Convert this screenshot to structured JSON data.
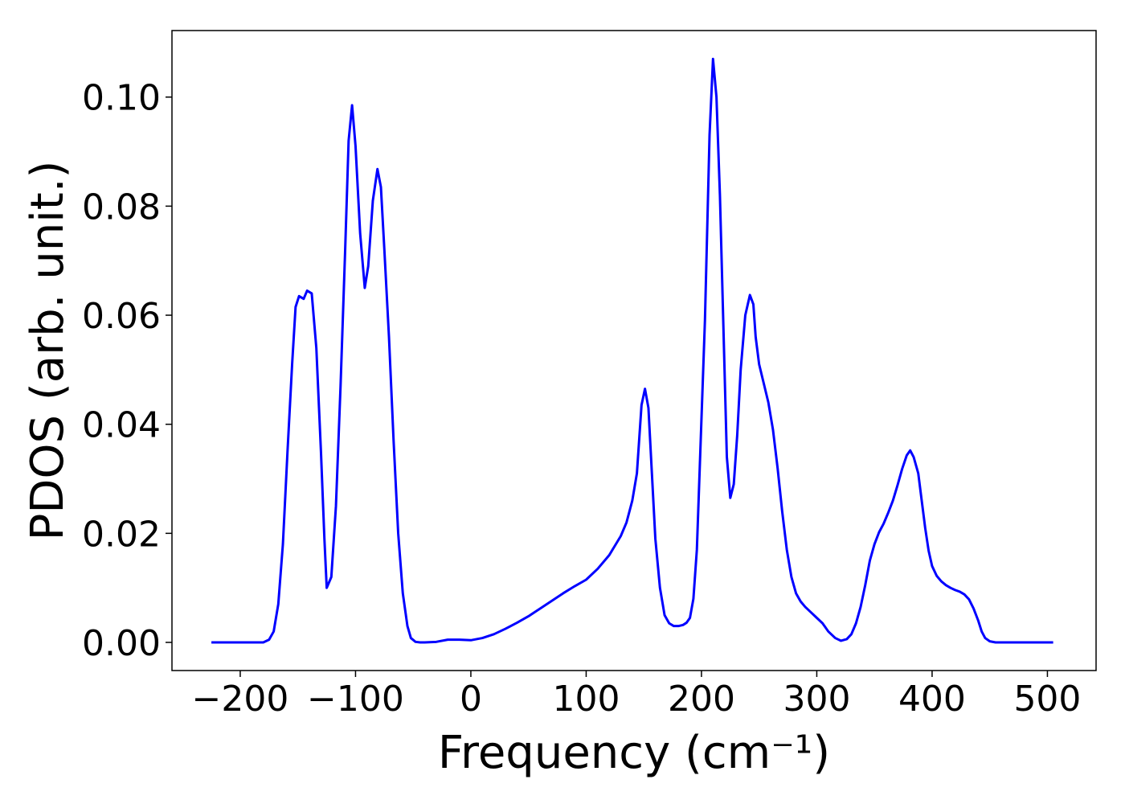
{
  "chart_data": {
    "type": "line",
    "xlabel": "Frequency (cm⁻¹)",
    "ylabel": "PDOS (arb. unit.)",
    "xlim": [
      -259.2,
      542.2
    ],
    "ylim": [
      -0.00516,
      0.1122
    ],
    "xticks": [
      {
        "value": -200,
        "label": "−200"
      },
      {
        "value": -100,
        "label": "−100"
      },
      0,
      100,
      200,
      300,
      400,
      500
    ],
    "yticks": [
      {
        "value": 0,
        "label": "0.00"
      },
      {
        "value": 0.02,
        "label": "0.02"
      },
      {
        "value": 0.04,
        "label": "0.04"
      },
      {
        "value": 0.06,
        "label": "0.06"
      },
      {
        "value": 0.08,
        "label": "0.08"
      },
      {
        "value": 0.1,
        "label": "0.10"
      }
    ],
    "grid": false,
    "x": [
      -225,
      -180,
      -175,
      -171,
      -167,
      -163,
      -159,
      -155,
      -152,
      -149,
      -145,
      -142,
      -138,
      -134,
      -130,
      -127,
      -125,
      -121,
      -117,
      -113,
      -109,
      -106,
      -103,
      -100,
      -96,
      -92,
      -89,
      -85,
      -81,
      -78,
      -75,
      -71,
      -67,
      -63,
      -59,
      -55,
      -52,
      -48,
      -44,
      -40,
      -30,
      -20,
      -10,
      0,
      10,
      20,
      30,
      40,
      50,
      60,
      70,
      80,
      90,
      100,
      110,
      120,
      130,
      135,
      140,
      144,
      148,
      151,
      154,
      157,
      160,
      164,
      168,
      172,
      176,
      180,
      184,
      187,
      190,
      193,
      196,
      199,
      203,
      207,
      210,
      213,
      216,
      219,
      222,
      225,
      228,
      231,
      234,
      238,
      242,
      245,
      247,
      250,
      254,
      258,
      262,
      266,
      270,
      274,
      278,
      282,
      286,
      290,
      295,
      300,
      305,
      310,
      316,
      321,
      326,
      330,
      334,
      338,
      342,
      346,
      350,
      354,
      358,
      362,
      366,
      370,
      374,
      378,
      381,
      384,
      388,
      391,
      394,
      397,
      400,
      404,
      408,
      412,
      416,
      420,
      424,
      428,
      432,
      436,
      440,
      443,
      446,
      450,
      455,
      505
    ],
    "series": [
      {
        "color": "#0000ff",
        "values": [
          0,
          0,
          0.0005,
          0.002,
          0.007,
          0.018,
          0.035,
          0.051,
          0.0615,
          0.0635,
          0.063,
          0.0645,
          0.064,
          0.054,
          0.035,
          0.019,
          0.01,
          0.012,
          0.025,
          0.047,
          0.072,
          0.092,
          0.0985,
          0.091,
          0.075,
          0.065,
          0.069,
          0.081,
          0.0868,
          0.0835,
          0.072,
          0.056,
          0.037,
          0.02,
          0.009,
          0.003,
          0.0008,
          0.0001,
          0,
          0,
          0.0001,
          0.0005,
          0.0005,
          0.0004,
          0.0008,
          0.0015,
          0.0025,
          0.0036,
          0.0048,
          0.0062,
          0.0076,
          0.009,
          0.0103,
          0.0115,
          0.0135,
          0.016,
          0.0195,
          0.022,
          0.026,
          0.031,
          0.0435,
          0.0465,
          0.043,
          0.031,
          0.019,
          0.01,
          0.005,
          0.0035,
          0.003,
          0.003,
          0.0032,
          0.0036,
          0.0045,
          0.008,
          0.017,
          0.035,
          0.059,
          0.093,
          0.107,
          0.1,
          0.082,
          0.058,
          0.034,
          0.0265,
          0.029,
          0.038,
          0.05,
          0.06,
          0.0637,
          0.062,
          0.056,
          0.051,
          0.0475,
          0.044,
          0.039,
          0.032,
          0.024,
          0.017,
          0.012,
          0.009,
          0.0075,
          0.0065,
          0.0055,
          0.0045,
          0.0035,
          0.002,
          0.0008,
          0.0003,
          0.0006,
          0.0015,
          0.0035,
          0.0065,
          0.0105,
          0.015,
          0.018,
          0.0202,
          0.0218,
          0.0238,
          0.026,
          0.0288,
          0.0318,
          0.0343,
          0.0352,
          0.034,
          0.031,
          0.026,
          0.021,
          0.0168,
          0.014,
          0.0122,
          0.0112,
          0.0105,
          0.01,
          0.0096,
          0.0093,
          0.0088,
          0.0079,
          0.0062,
          0.004,
          0.002,
          0.0008,
          0.0002,
          0,
          0
        ]
      }
    ]
  }
}
